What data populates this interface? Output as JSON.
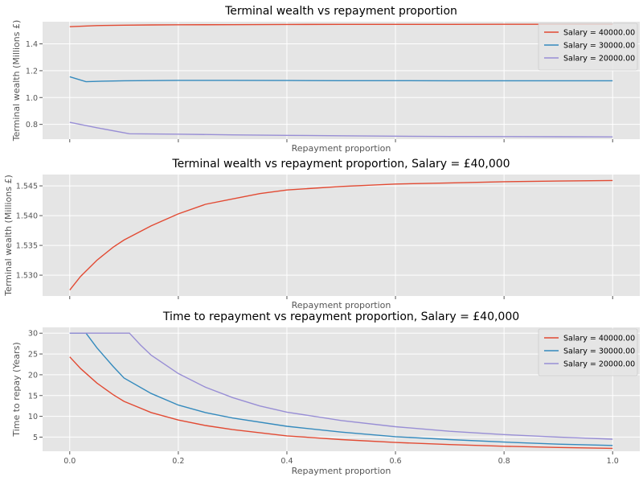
{
  "colors": {
    "s40k": "#E24A33",
    "s30k": "#348ABD",
    "s20k": "#988ED5"
  },
  "chart_data": [
    {
      "type": "line",
      "title": "Terminal wealth vs repayment proportion",
      "xlabel": "Repayment proportion",
      "ylabel": "Terminal wealth (Millions £)",
      "xlim": [
        -0.05,
        1.05
      ],
      "ylim": [
        0.69,
        1.565
      ],
      "xticks": [
        0.0,
        0.2,
        0.4,
        0.6,
        0.8,
        1.0
      ],
      "xtick_labels_visible": false,
      "yticks": [
        0.8,
        1.0,
        1.2,
        1.4
      ],
      "ytick_labels": [
        "0.8",
        "1.0",
        "1.2",
        "1.4"
      ],
      "grid": true,
      "legend": "top-right",
      "series": [
        {
          "name": "Salary = 40000.00",
          "color": "#E24A33",
          "x": [
            0,
            0.05,
            0.1,
            0.15,
            0.2,
            0.3,
            0.4,
            0.5,
            0.6,
            0.7,
            0.8,
            0.9,
            1.0
          ],
          "y": [
            1.528,
            1.536,
            1.539,
            1.541,
            1.542,
            1.543,
            1.5445,
            1.545,
            1.5453,
            1.5455,
            1.5457,
            1.5458,
            1.546
          ]
        },
        {
          "name": "Salary = 30000.00",
          "color": "#348ABD",
          "x": [
            0,
            0.03,
            0.06,
            0.1,
            0.2,
            0.3,
            0.4,
            0.5,
            0.6,
            0.7,
            0.8,
            0.9,
            1.0
          ],
          "y": [
            1.155,
            1.118,
            1.122,
            1.125,
            1.128,
            1.128,
            1.127,
            1.126,
            1.126,
            1.125,
            1.125,
            1.125,
            1.125
          ]
        },
        {
          "name": "Salary = 20000.00",
          "color": "#988ED5",
          "x": [
            0,
            0.05,
            0.11,
            0.2,
            0.3,
            0.4,
            0.5,
            0.6,
            0.7,
            0.8,
            0.9,
            1.0
          ],
          "y": [
            0.815,
            0.775,
            0.73,
            0.727,
            0.722,
            0.718,
            0.715,
            0.712,
            0.71,
            0.709,
            0.708,
            0.707
          ]
        }
      ]
    },
    {
      "type": "line",
      "title": "Terminal wealth vs repayment proportion, Salary = £40,000",
      "xlabel": "Repayment proportion",
      "ylabel": "Terminal wealth (Millions £)",
      "xlim": [
        -0.05,
        1.05
      ],
      "ylim": [
        1.5265,
        1.5469
      ],
      "xticks": [
        0.0,
        0.2,
        0.4,
        0.6,
        0.8,
        1.0
      ],
      "xtick_labels_visible": false,
      "yticks": [
        1.53,
        1.535,
        1.54,
        1.545
      ],
      "ytick_labels": [
        "1.530",
        "1.535",
        "1.540",
        "1.545"
      ],
      "grid": true,
      "series": [
        {
          "color": "#E24A33",
          "x": [
            0,
            0.02,
            0.05,
            0.08,
            0.1,
            0.15,
            0.2,
            0.25,
            0.3,
            0.35,
            0.4,
            0.5,
            0.6,
            0.7,
            0.8,
            0.9,
            1.0
          ],
          "y": [
            1.5275,
            1.5298,
            1.5325,
            1.5347,
            1.5359,
            1.5383,
            1.5403,
            1.5419,
            1.5428,
            1.5437,
            1.5443,
            1.5449,
            1.5453,
            1.5455,
            1.5457,
            1.5458,
            1.5459
          ]
        }
      ]
    },
    {
      "type": "line",
      "title": "Time to repayment vs repayment proportion, Salary = £40,000",
      "xlabel": "Repayment proportion",
      "ylabel": "Time to repay (Years)",
      "xlim": [
        -0.05,
        1.05
      ],
      "ylim": [
        1.6,
        31.4
      ],
      "xticks": [
        0.0,
        0.2,
        0.4,
        0.6,
        0.8,
        1.0
      ],
      "xtick_labels": [
        "0.0",
        "0.2",
        "0.4",
        "0.6",
        "0.8",
        "1.0"
      ],
      "yticks": [
        5,
        10,
        15,
        20,
        25,
        30
      ],
      "ytick_labels": [
        "5",
        "10",
        "15",
        "20",
        "25",
        "30"
      ],
      "grid": true,
      "legend": "top-right",
      "series": [
        {
          "name": "Salary = 40000.00",
          "color": "#E24A33",
          "x": [
            0,
            0.02,
            0.05,
            0.08,
            0.1,
            0.15,
            0.2,
            0.25,
            0.3,
            0.4,
            0.5,
            0.6,
            0.7,
            0.8,
            0.9,
            1.0
          ],
          "y": [
            24.3,
            21.5,
            18.0,
            15.2,
            13.6,
            10.9,
            9.1,
            7.8,
            6.8,
            5.3,
            4.4,
            3.7,
            3.2,
            2.8,
            2.5,
            2.3
          ]
        },
        {
          "name": "Salary = 30000.00",
          "color": "#348ABD",
          "x": [
            0,
            0.03,
            0.05,
            0.08,
            0.1,
            0.15,
            0.2,
            0.25,
            0.3,
            0.4,
            0.5,
            0.6,
            0.7,
            0.8,
            0.9,
            1.0
          ],
          "y": [
            30,
            30,
            26.5,
            22.0,
            19.2,
            15.5,
            12.7,
            10.9,
            9.6,
            7.6,
            6.2,
            5.1,
            4.4,
            3.8,
            3.3,
            3.0
          ]
        },
        {
          "name": "Salary = 20000.00",
          "color": "#988ED5",
          "x": [
            0,
            0.05,
            0.11,
            0.13,
            0.15,
            0.2,
            0.25,
            0.3,
            0.35,
            0.4,
            0.5,
            0.6,
            0.7,
            0.8,
            0.9,
            1.0
          ],
          "y": [
            30,
            30,
            30,
            27.2,
            24.7,
            20.3,
            17.0,
            14.5,
            12.5,
            11.0,
            9.0,
            7.5,
            6.4,
            5.6,
            5.0,
            4.5
          ]
        }
      ]
    }
  ]
}
